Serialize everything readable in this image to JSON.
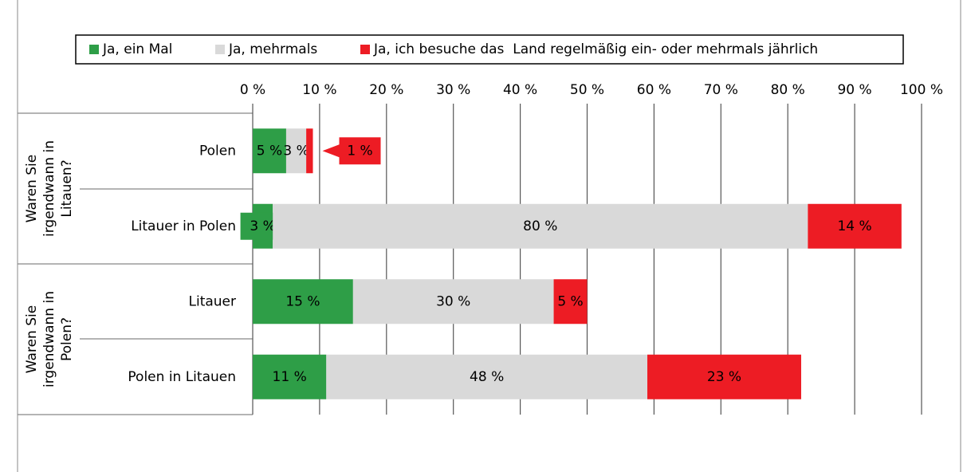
{
  "chart_data": {
    "type": "bar",
    "orientation": "horizontal",
    "stacked": true,
    "categories": [
      "Polen",
      "Litauer in Polen",
      "Litauer",
      "Polen in Litauen"
    ],
    "groups": [
      {
        "lines": [
          "Waren Sie",
          "irgendwann in",
          "Litauen?"
        ]
      },
      {
        "lines": [
          "Waren Sie",
          "irgendwann in",
          "Polen?"
        ]
      }
    ],
    "series": [
      {
        "name": "Ja, ein Mal",
        "color": "#2e9e47",
        "label_color": "#ffffff",
        "values": [
          5,
          3,
          15,
          11
        ],
        "value_labels": [
          "5 %",
          "3 %",
          "15 %",
          "11 %"
        ]
      },
      {
        "name": "Ja, mehrmals",
        "color": "#d9d9d9",
        "label_color": "#000000",
        "values": [
          3,
          80,
          30,
          48
        ],
        "value_labels": [
          "3 %",
          "80 %",
          "30 %",
          "48 %"
        ]
      },
      {
        "name": "Ja, ich besuche das  Land regelmäßig ein- oder mehrmals jährlich",
        "color": "#ed1c24",
        "label_color": "#ffffff",
        "values": [
          1,
          14,
          5,
          23
        ],
        "value_labels": [
          "1 %",
          "14 %",
          "5 %",
          "23 %"
        ]
      }
    ],
    "xlim": [
      0,
      100
    ],
    "xticks": [
      {
        "value": 0,
        "label": "0 %"
      },
      {
        "value": 10,
        "label": "10 %"
      },
      {
        "value": 20,
        "label": "20 %"
      },
      {
        "value": 30,
        "label": "30 %"
      },
      {
        "value": 40,
        "label": "40 %"
      },
      {
        "value": 50,
        "label": "50 %"
      },
      {
        "value": 60,
        "label": "60 %"
      },
      {
        "value": 70,
        "label": "70 %"
      },
      {
        "value": 80,
        "label": "80 %"
      },
      {
        "value": 90,
        "label": "90 %"
      },
      {
        "value": 100,
        "label": "100 %"
      }
    ],
    "grid": true,
    "legend": "top"
  }
}
